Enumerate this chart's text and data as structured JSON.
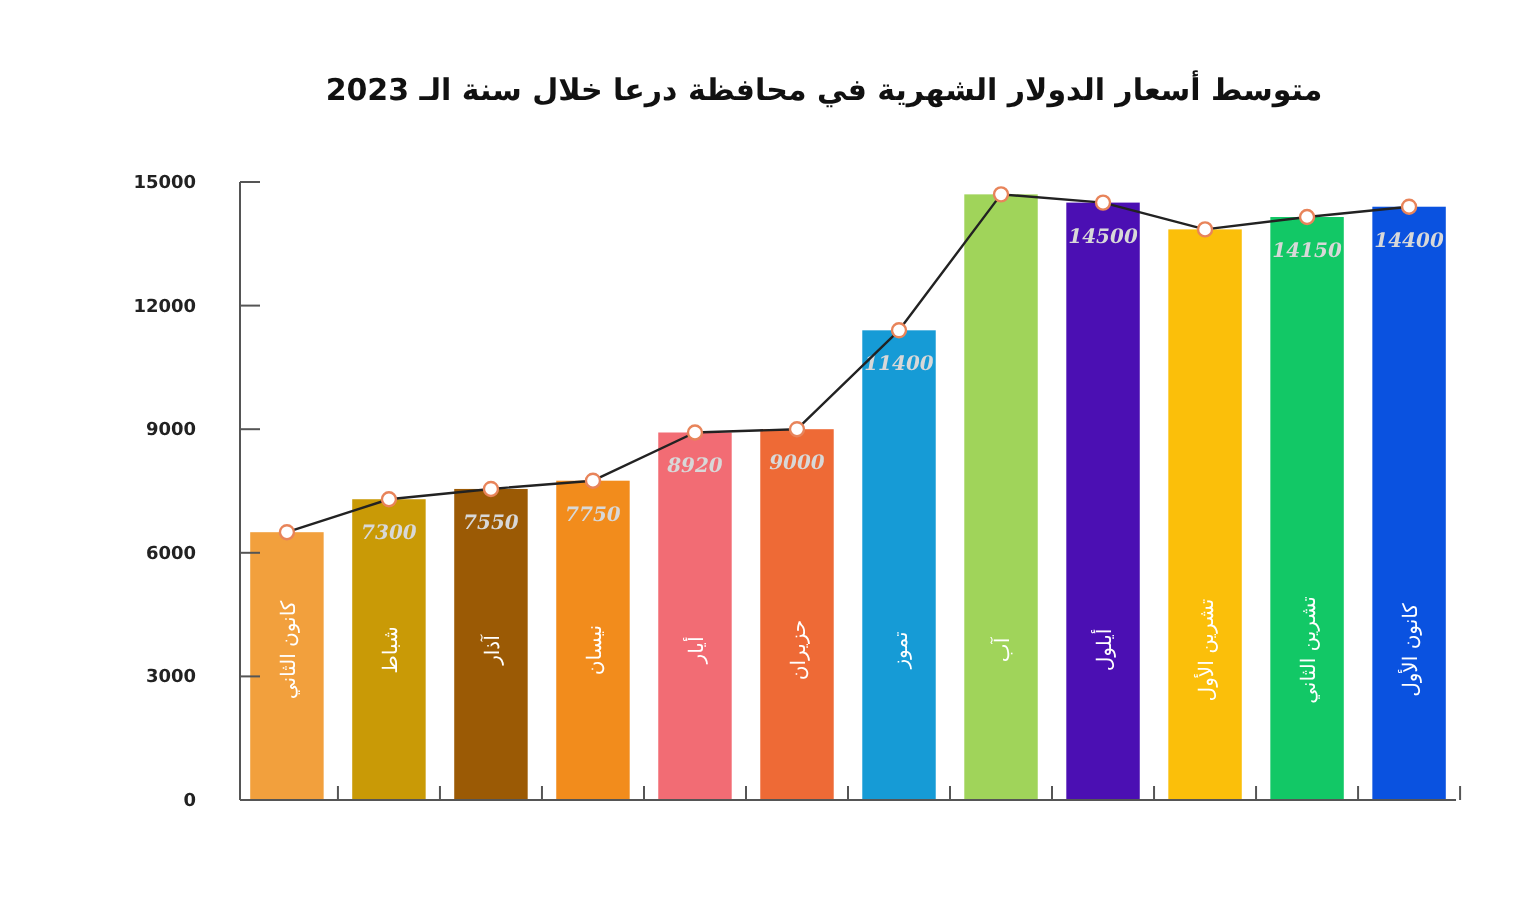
{
  "chart_data": {
    "type": "bar",
    "title": "متوسط أسعار الدولار الشهرية في محافظة درعا خلال سنة الـ 2023",
    "categories": [
      "كانون الثاني",
      "شباط",
      "آذار",
      "نيسان",
      "أيار",
      "حزيران",
      "تموز",
      "آب",
      "أيلول",
      "تشرين الأول",
      "تشرين الثاني",
      "كانون الأول"
    ],
    "series": [
      {
        "values": [
          6500,
          7300,
          7550,
          7750,
          8920,
          9000,
          11400,
          14700,
          14500,
          13850,
          14150,
          14400
        ],
        "colors": [
          "#f2a03d",
          "#c99a06",
          "#9b5a05",
          "#f28c1c",
          "#f26c74",
          "#ee6a36",
          "#169bd6",
          "#a0d45a",
          "#4b0fb3",
          "#fbbf0a",
          "#12c866",
          "#0a52e0"
        ],
        "value_labels": [
          null,
          "7300",
          "7550",
          "7750",
          "8920",
          "9000",
          "11400",
          null,
          "14500",
          null,
          "14150",
          "14400"
        ]
      },
      {
        "type": "line",
        "color": "#222222",
        "values": [
          6500,
          7300,
          7550,
          7750,
          8920,
          9000,
          11400,
          14700,
          14500,
          13850,
          14150,
          14400
        ],
        "marker": "circle"
      }
    ],
    "ylim": [
      0,
      15000
    ],
    "yticks": [
      0,
      3000,
      6000,
      9000,
      12000,
      15000
    ],
    "grid": false
  }
}
